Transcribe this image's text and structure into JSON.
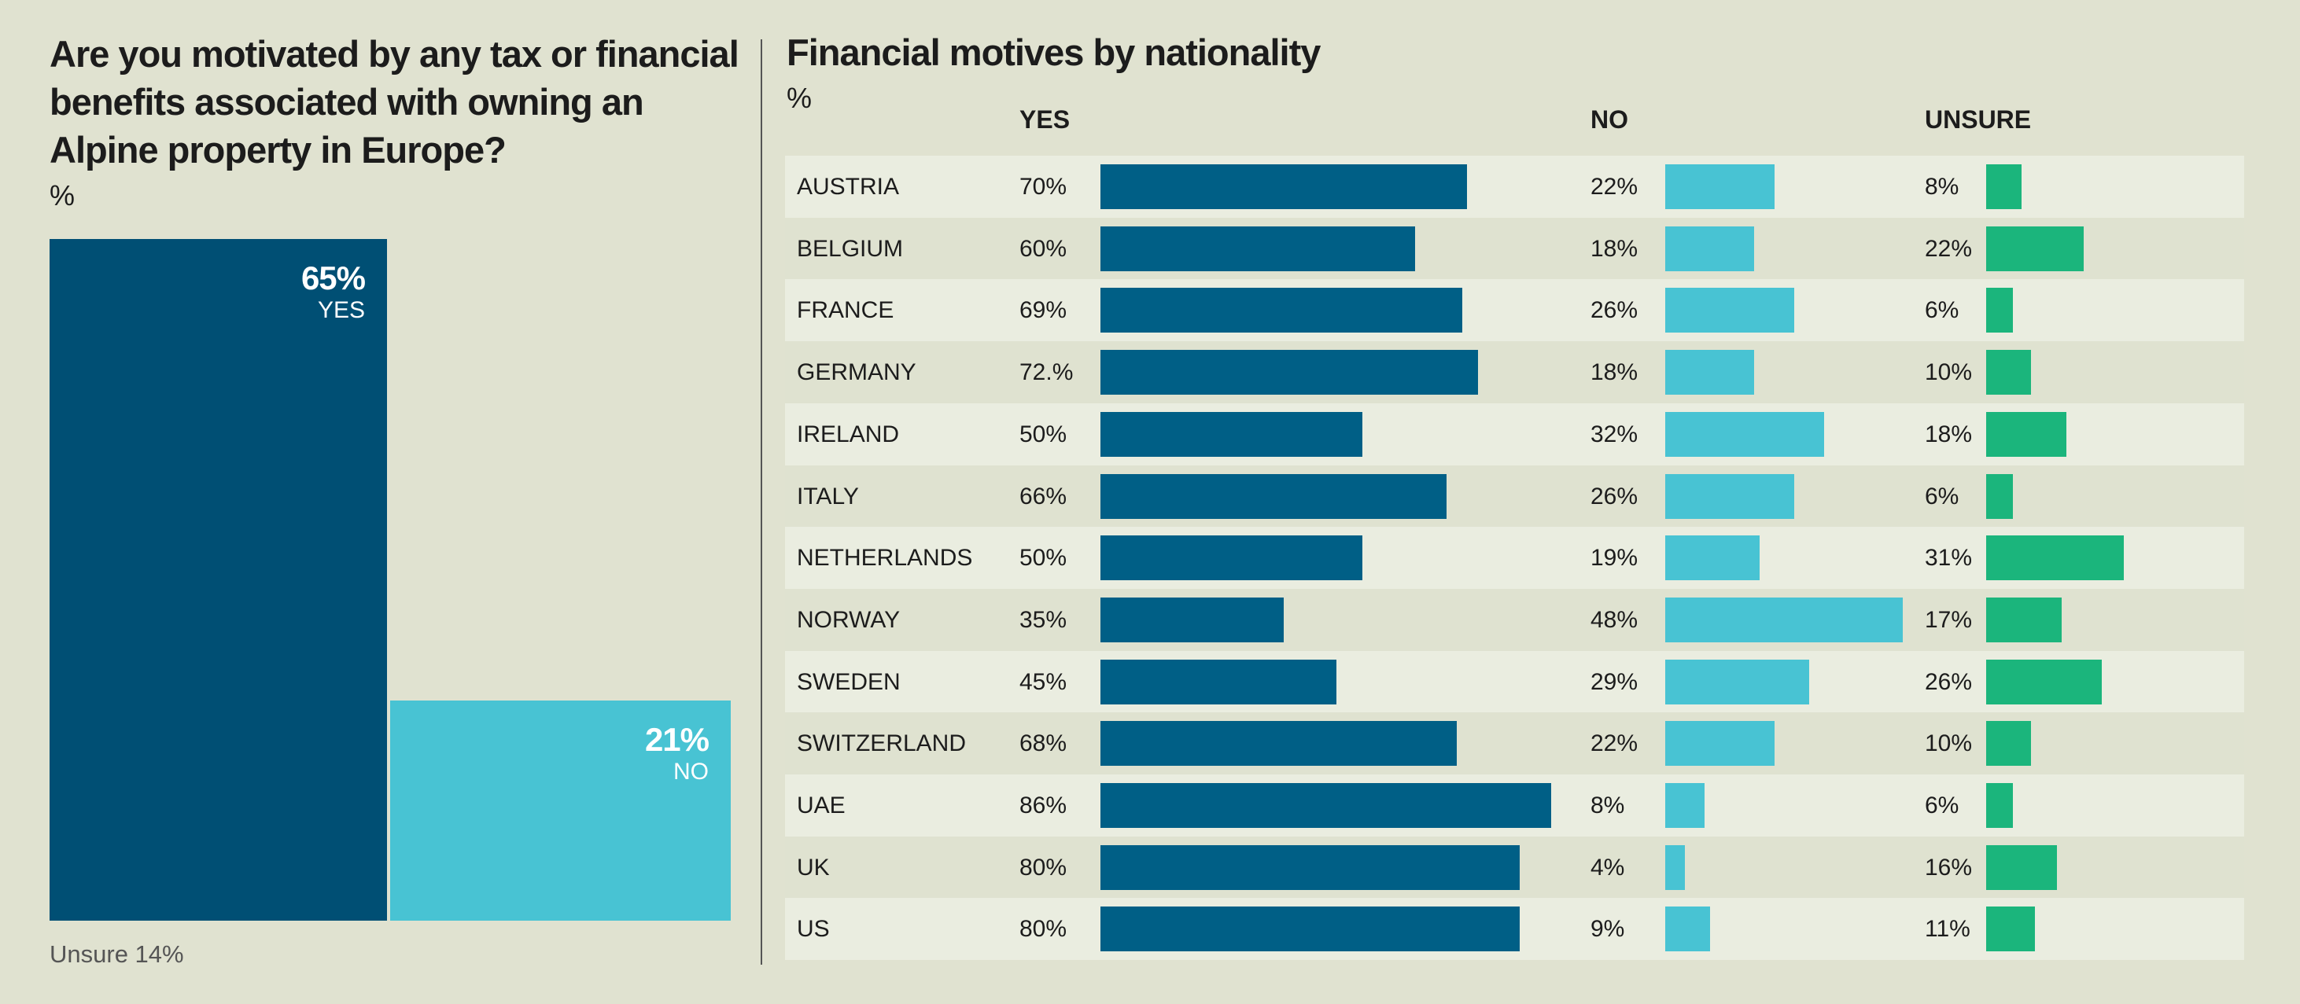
{
  "chart_data": [
    {
      "type": "bar",
      "title": "Are you motivated by any tax or financial benefits associated with owning an Alpine property in Europe?",
      "unit": "%",
      "categories": [
        "YES",
        "NO"
      ],
      "values": [
        65,
        21
      ],
      "value_labels": [
        "65%",
        "21%"
      ],
      "note": "Unsure 14%",
      "colors": [
        "#004f74",
        "#48c3d3"
      ]
    },
    {
      "type": "bar",
      "title": "Financial motives by nationality",
      "unit": "%",
      "series_headers": [
        "YES",
        "NO",
        "UNSURE"
      ],
      "colors": [
        "#005f86",
        "#48c3d3",
        "#1bb57c"
      ],
      "rows": [
        {
          "country": "AUSTRIA",
          "yes": 70,
          "no": 22,
          "unsure": 8,
          "yes_label": "70%",
          "no_label": "22%",
          "unsure_label": "8%"
        },
        {
          "country": "BELGIUM",
          "yes": 60,
          "no": 18,
          "unsure": 22,
          "yes_label": "60%",
          "no_label": "18%",
          "unsure_label": "22%"
        },
        {
          "country": "FRANCE",
          "yes": 69,
          "no": 26,
          "unsure": 6,
          "yes_label": "69%",
          "no_label": "26%",
          "unsure_label": "6%"
        },
        {
          "country": "GERMANY",
          "yes": 72,
          "no": 18,
          "unsure": 10,
          "yes_label": "72.%",
          "no_label": "18%",
          "unsure_label": "10%"
        },
        {
          "country": "IRELAND",
          "yes": 50,
          "no": 32,
          "unsure": 18,
          "yes_label": "50%",
          "no_label": "32%",
          "unsure_label": "18%"
        },
        {
          "country": "ITALY",
          "yes": 66,
          "no": 26,
          "unsure": 6,
          "yes_label": "66%",
          "no_label": "26%",
          "unsure_label": "6%"
        },
        {
          "country": "NETHERLANDS",
          "yes": 50,
          "no": 19,
          "unsure": 31,
          "yes_label": "50%",
          "no_label": "19%",
          "unsure_label": "31%"
        },
        {
          "country": "NORWAY",
          "yes": 35,
          "no": 48,
          "unsure": 17,
          "yes_label": "35%",
          "no_label": "48%",
          "unsure_label": "17%"
        },
        {
          "country": "SWEDEN",
          "yes": 45,
          "no": 29,
          "unsure": 26,
          "yes_label": "45%",
          "no_label": "29%",
          "unsure_label": "26%"
        },
        {
          "country": "SWITZERLAND",
          "yes": 68,
          "no": 22,
          "unsure": 10,
          "yes_label": "68%",
          "no_label": "22%",
          "unsure_label": "10%"
        },
        {
          "country": "UAE",
          "yes": 86,
          "no": 8,
          "unsure": 6,
          "yes_label": "86%",
          "no_label": "8%",
          "unsure_label": "6%"
        },
        {
          "country": "UK",
          "yes": 80,
          "no": 4,
          "unsure": 16,
          "yes_label": "80%",
          "no_label": "4%",
          "unsure_label": "16%"
        },
        {
          "country": "US",
          "yes": 80,
          "no": 9,
          "unsure": 11,
          "yes_label": "80%",
          "no_label": "9%",
          "unsure_label": "11%"
        }
      ]
    }
  ]
}
